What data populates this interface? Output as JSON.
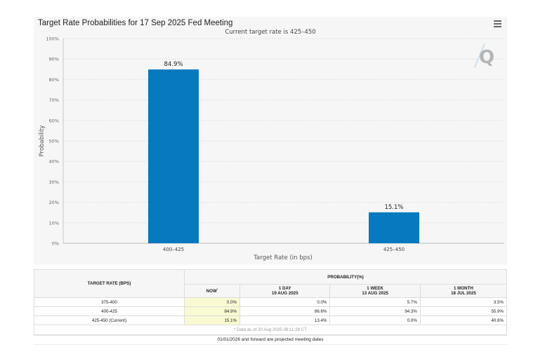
{
  "chart_data": {
    "type": "bar",
    "title": "Target Rate Probabilities for 17 Sep 2025 Fed Meeting",
    "subtitle": "Current target rate is 425–450",
    "categories": [
      "400–425",
      "425–450"
    ],
    "values": [
      84.9,
      15.1
    ],
    "data_labels": [
      "84.9%",
      "15.1%"
    ],
    "xlabel": "Target Rate (in bps)",
    "ylabel": "Probability",
    "ylim": [
      0,
      100
    ],
    "yticks": [
      "0%",
      "10%",
      "20%",
      "30%",
      "40%",
      "50%",
      "60%",
      "70%",
      "80%",
      "90%",
      "100%"
    ],
    "ytick_values": [
      0,
      10,
      20,
      30,
      40,
      50,
      60,
      70,
      80,
      90,
      100
    ],
    "grid": true,
    "bar_color": "#0779bf",
    "legend": "none"
  },
  "chart_menu_icon": "hamburger-menu-icon",
  "watermark_icon": "quikstrike-q-logo",
  "table": {
    "col_target_rate": "TARGET RATE (BPS)",
    "col_probability": "PROBABILITY(%)",
    "subcols": [
      {
        "line1": "NOW",
        "sup": "*",
        "line2": ""
      },
      {
        "line1": "1 DAY",
        "line2": "19 AUG 2025"
      },
      {
        "line1": "1 WEEK",
        "line2": "13 AUG 2025"
      },
      {
        "line1": "1 MONTH",
        "line2": "18 JUL 2025"
      }
    ],
    "rows": [
      {
        "rate": "375-400",
        "values": [
          "0.0%",
          "0.0%",
          "5.7%",
          "3.5%"
        ]
      },
      {
        "rate": "400-425",
        "values": [
          "84.9%",
          "86.6%",
          "94.3%",
          "55.9%"
        ]
      },
      {
        "rate": "425-450 (Current)",
        "values": [
          "15.1%",
          "13.4%",
          "0.0%",
          "40.6%"
        ]
      }
    ],
    "note": "* Data as of 20 Aug 2025 09:11:28 CT"
  },
  "footer_note": "01/01/2026 and forward are projected meeting dates"
}
